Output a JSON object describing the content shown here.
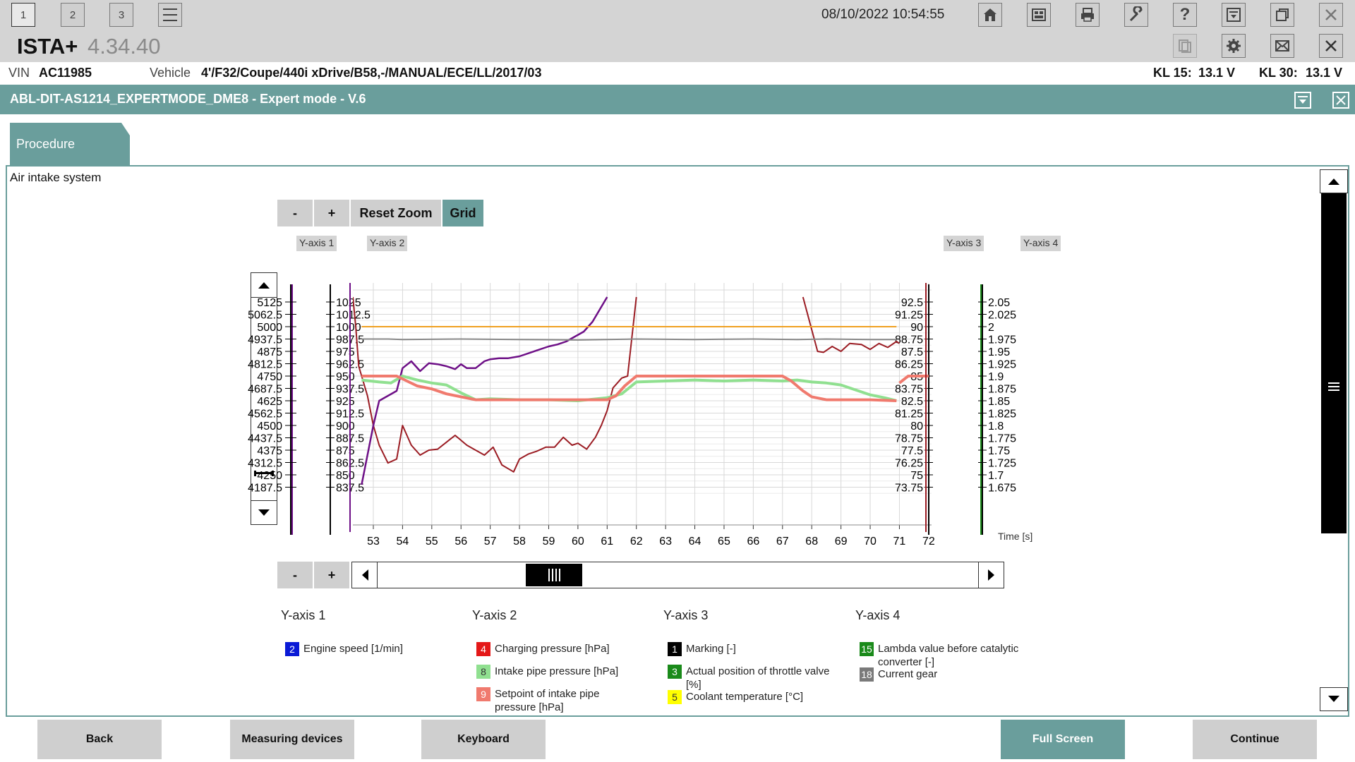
{
  "topbar": {
    "tabs": [
      "1",
      "2",
      "3"
    ],
    "datetime": "08/10/2022 10:54:55"
  },
  "app": {
    "name": "ISTA+",
    "version": "4.34.40"
  },
  "vehicle": {
    "vin_label": "VIN",
    "vin": "AC11985",
    "vehicle_label": "Vehicle",
    "vehicle": "4'/F32/Coupe/440i xDrive/B58,-/MANUAL/ECE/LL/2017/03",
    "kl15_label": "KL 15:",
    "kl15": "13.1 V",
    "kl30_label": "KL 30:",
    "kl30": "13.1 V"
  },
  "procedure": {
    "title": "ABL-DIT-AS1214_EXPERTMODE_DME8 - Expert mode - V.6",
    "tab_label": "Procedure",
    "section_title": "Air intake system"
  },
  "chart_controls": {
    "minus": "-",
    "plus": "+",
    "reset_zoom": "Reset Zoom",
    "grid": "Grid",
    "axis_tags": [
      "Y-axis 1",
      "Y-axis 2",
      "Y-axis 3",
      "Y-axis 4"
    ]
  },
  "chart_data": {
    "type": "line",
    "xlabel": "Time [s]",
    "x_ticks": [
      53,
      54,
      55,
      56,
      57,
      58,
      59,
      60,
      61,
      62,
      63,
      64,
      65,
      66,
      67,
      68,
      69,
      70,
      71,
      72
    ],
    "xlim": [
      52.3,
      72.1
    ],
    "grid": true,
    "y_axis_1": {
      "ticks": [
        "5125",
        "5062.5",
        "5000",
        "4937.5",
        "4875",
        "4812.5",
        "4750",
        "4687.5",
        "4625",
        "4562.5",
        "4500",
        "4437.5",
        "4375",
        "4312.5",
        "4250",
        "4187.5"
      ],
      "range": [
        4187.5,
        5125
      ]
    },
    "y_axis_2": {
      "ticks": [
        "1025",
        "1012.5",
        "1000",
        "987.5",
        "975",
        "962.5",
        "950",
        "937.5",
        "925",
        "912.5",
        "900",
        "887.5",
        "875",
        "862.5",
        "850",
        "837.5"
      ],
      "range": [
        837.5,
        1025
      ]
    },
    "y_axis_3": {
      "ticks": [
        "92.5",
        "91.25",
        "90",
        "88.75",
        "87.5",
        "86.25",
        "85",
        "83.75",
        "82.5",
        "81.25",
        "80",
        "78.75",
        "77.5",
        "76.25",
        "75",
        "73.75"
      ],
      "range": [
        73.75,
        92.5
      ]
    },
    "y_axis_4": {
      "ticks": [
        "2.05",
        "2.025",
        "2",
        "1.975",
        "1.95",
        "1.925",
        "1.9",
        "1.875",
        "1.85",
        "1.825",
        "1.8",
        "1.775",
        "1.75",
        "1.725",
        "1.7",
        "1.675"
      ],
      "range": [
        1.675,
        2.05
      ]
    },
    "series": [
      {
        "id": "charging",
        "color": "#9b1c23",
        "axis": 2,
        "width": 2,
        "x": [
          52.3,
          52.4,
          52.5,
          52.8,
          53.0,
          53.2,
          53.5,
          53.8,
          54.0,
          54.3,
          54.6,
          54.9,
          55.2,
          55.5,
          55.8,
          56.2,
          56.5,
          56.8,
          57.1,
          57.4,
          57.8,
          58.0,
          58.3,
          58.6,
          58.9,
          59.2,
          59.5,
          59.8,
          60.0,
          60.3,
          60.6,
          60.8,
          61.0,
          61.2,
          61.5,
          61.7,
          62.0
        ],
        "y": [
          1030,
          1000,
          960,
          930,
          900,
          880,
          862,
          866,
          900,
          880,
          870,
          875,
          876,
          883,
          890,
          880,
          875,
          870,
          878,
          860,
          853,
          866,
          871,
          874,
          878,
          878,
          888,
          880,
          882,
          876,
          888,
          900,
          915,
          938,
          948,
          950,
          1030
        ]
      },
      {
        "id": "charging-right",
        "color": "#9b1c23",
        "axis": 2,
        "width": 2,
        "x": [
          67.7,
          68.0,
          68.2,
          68.4,
          68.7,
          69.0,
          69.3,
          69.7,
          70.0,
          70.3,
          70.6,
          70.9,
          71.0
        ],
        "y": [
          1030,
          997,
          975,
          974,
          980,
          975,
          983,
          982,
          977,
          983,
          979,
          985,
          983
        ]
      },
      {
        "id": "engine-speed",
        "color": "#6e1087",
        "axis": 2,
        "width": 2.5,
        "x": [
          52.6,
          52.8,
          53.0,
          53.2,
          53.5,
          53.8,
          54.0,
          54.3,
          54.6,
          54.9,
          55.2,
          55.5,
          55.8,
          56.0,
          56.2,
          56.5,
          56.8,
          57.0,
          57.3,
          57.6,
          58.0,
          58.3,
          58.6,
          59.0,
          59.3,
          59.6,
          59.9,
          60.2,
          60.5,
          60.8,
          61.0
        ],
        "y": [
          840,
          870,
          900,
          925,
          930,
          935,
          958,
          965,
          955,
          963,
          962,
          960,
          957,
          962,
          958,
          958,
          965,
          967,
          968,
          968,
          970,
          973,
          976,
          980,
          982,
          985,
          990,
          995,
          1005,
          1020,
          1030
        ]
      },
      {
        "id": "coolant",
        "color": "#f0a020",
        "axis": 2,
        "width": 2,
        "x": [
          52.6,
          70.9
        ],
        "y": [
          1000,
          1000
        ]
      },
      {
        "id": "gear",
        "color": "#888888",
        "axis": 2,
        "width": 2,
        "x": [
          52.6,
          53.5,
          54.0,
          56.0,
          58.0,
          60.0,
          62.0,
          64.0,
          66.0,
          67.5,
          68.5,
          70.0,
          70.9
        ],
        "y": [
          987.5,
          987.5,
          987,
          987.5,
          987,
          986.5,
          987.5,
          987,
          987.5,
          987,
          987.5,
          987,
          987
        ]
      },
      {
        "id": "intake-pipe",
        "color": "#90e090",
        "axis": 2,
        "width": 4,
        "x": [
          52.6,
          53.2,
          53.6,
          54.0,
          54.5,
          55.0,
          55.5,
          56.0,
          56.5,
          57.0,
          58.0,
          59.0,
          60.0,
          61.0,
          61.5,
          62.0,
          63.0,
          64.0,
          65.0,
          66.0,
          67.0,
          67.5,
          68.0,
          68.5,
          69.0,
          69.5,
          70.0,
          70.5,
          70.9
        ],
        "y": [
          946,
          944,
          943,
          950,
          946,
          943,
          941,
          933,
          926,
          927,
          926,
          926,
          925,
          928,
          932,
          944,
          945,
          946,
          945,
          946,
          945,
          946,
          944,
          943,
          941,
          936,
          931,
          928,
          925
        ]
      },
      {
        "id": "setpoint",
        "color": "#f07a6e",
        "axis": 2,
        "width": 4,
        "x": [
          52.6,
          53.0,
          53.8,
          54.5,
          55.0,
          55.5,
          56.0,
          56.5,
          57.0,
          57.5,
          58.0,
          59.0,
          60.0,
          61.0,
          61.3,
          61.6,
          62.0,
          63.0,
          64.0,
          65.0,
          66.0,
          67.0,
          67.3,
          67.7,
          68.0,
          68.5,
          69.0,
          70.0,
          70.9
        ],
        "y": [
          950,
          950,
          950,
          940,
          937,
          932,
          929,
          926,
          926,
          926,
          926,
          926,
          926,
          926,
          930,
          940,
          950,
          950,
          950,
          950,
          950,
          950,
          945,
          935,
          929,
          926,
          926,
          926,
          925
        ]
      },
      {
        "id": "setpoint-tail",
        "color": "#f07a6e",
        "axis": 2,
        "width": 4,
        "x": [
          71.0,
          71.3,
          71.8,
          72.0
        ],
        "y": [
          943,
          950,
          950,
          950
        ]
      }
    ]
  },
  "legend": {
    "groups": [
      {
        "title": "Y-axis 1",
        "items": [
          {
            "num": "2",
            "color": "#0a1ad6",
            "text": "Engine speed [1/min]"
          }
        ]
      },
      {
        "title": "Y-axis 2",
        "items": [
          {
            "num": "4",
            "color": "#e41818",
            "text": "Charging pressure [hPa]"
          },
          {
            "num": "8",
            "color": "#90e090",
            "text": "Intake pipe pressure [hPa]"
          },
          {
            "num": "9",
            "color": "#f07a6e",
            "text": "Setpoint of intake pipe pressure [hPa]"
          }
        ]
      },
      {
        "title": "Y-axis 3",
        "items": [
          {
            "num": "1",
            "color": "#000000",
            "text": "Marking [-]"
          },
          {
            "num": "3",
            "color": "#1a8a1a",
            "text": "Actual position of throttle valve [%]"
          },
          {
            "num": "5",
            "color": "#ffff00",
            "text": "Coolant temperature [°C]"
          }
        ]
      },
      {
        "title": "Y-axis 4",
        "items": [
          {
            "num": "15",
            "color": "#1a8a1a",
            "text": "Lambda value before catalytic converter [-]"
          },
          {
            "num": "18",
            "color": "#7a7a7a",
            "text": "Current gear"
          }
        ]
      }
    ]
  },
  "bottom_buttons": {
    "back": "Back",
    "measuring": "Measuring devices",
    "keyboard": "Keyboard",
    "fullscreen": "Full Screen",
    "continue": "Continue"
  },
  "colors": {
    "accent": "#6a9e9c",
    "toolbar": "#d4d4d4",
    "button": "#cfcfcf"
  }
}
